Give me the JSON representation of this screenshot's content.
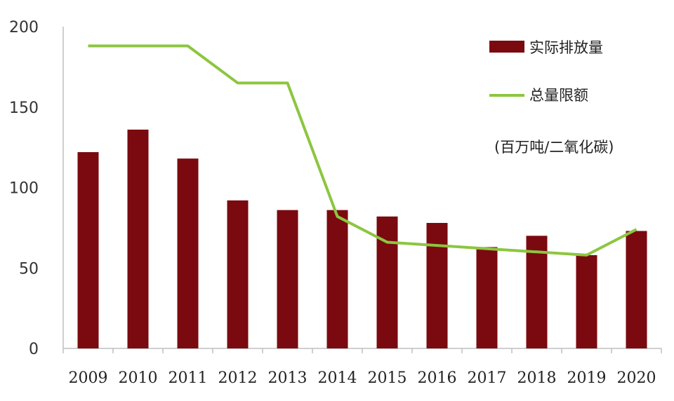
{
  "chart_data": {
    "type": "bar",
    "categories": [
      "2009",
      "2010",
      "2011",
      "2012",
      "2013",
      "2014",
      "2015",
      "2016",
      "2017",
      "2018",
      "2019",
      "2020"
    ],
    "series": [
      {
        "name": "实际排放量",
        "type": "bar",
        "color": "#7a0a0f",
        "values": [
          122,
          136,
          118,
          92,
          86,
          86,
          82,
          78,
          63,
          70,
          58,
          73
        ]
      },
      {
        "name": "总量限额",
        "type": "line",
        "color": "#8cc63f",
        "values": [
          188,
          188,
          188,
          165,
          165,
          82,
          66,
          64,
          62,
          60,
          58,
          74
        ]
      }
    ],
    "unit_note": "(百万吨/二氧化碳)",
    "ylim": [
      0,
      200
    ],
    "yticks": [
      "0",
      "50",
      "100",
      "150",
      "200"
    ],
    "grid": false,
    "legend_position": "top-right"
  }
}
